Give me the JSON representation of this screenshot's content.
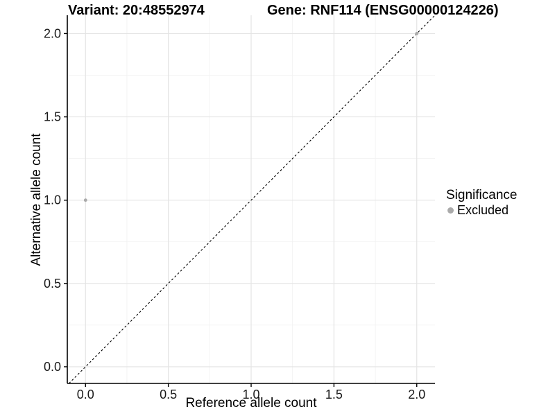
{
  "chart_data": {
    "type": "scatter",
    "variant_title": "Variant: 20:48552974",
    "gene_title": "Gene: RNF114 (ENSG00000124226)",
    "xlabel": "Reference allele count",
    "ylabel": "Alternative allele count",
    "xlim": [
      -0.11,
      2.11
    ],
    "ylim": [
      -0.1,
      2.11
    ],
    "xticks": [
      0.0,
      0.5,
      1.0,
      1.5,
      2.0
    ],
    "yticks": [
      0.0,
      0.5,
      1.0,
      1.5,
      2.0
    ],
    "xtick_labels": [
      "0.0",
      "0.5",
      "1.0",
      "1.5",
      "2.0"
    ],
    "ytick_labels": [
      "0.0",
      "0.5",
      "1.0",
      "1.5",
      "2.0"
    ],
    "minor_xticks": [
      0.25,
      0.75,
      1.25,
      1.75
    ],
    "minor_yticks": [
      0.25,
      0.75,
      1.25,
      1.75
    ],
    "grid": true,
    "identity_line": {
      "style": "dashed",
      "color": "#000000"
    },
    "series": [
      {
        "name": "Excluded",
        "color": "#aaaaaa",
        "points": [
          {
            "x": 0.0,
            "y": 1.0
          },
          {
            "x": 2.0,
            "y": 2.0
          }
        ]
      }
    ],
    "legend": {
      "title": "Significance",
      "position": "right",
      "items": [
        {
          "label": "Excluded",
          "color": "#aaaaaa"
        }
      ]
    },
    "colors": {
      "axis_line": "#000000",
      "tick_label": "#1a1a1a",
      "grid_major": "#e4e4e4",
      "grid_minor": "#f1f1f1"
    }
  }
}
